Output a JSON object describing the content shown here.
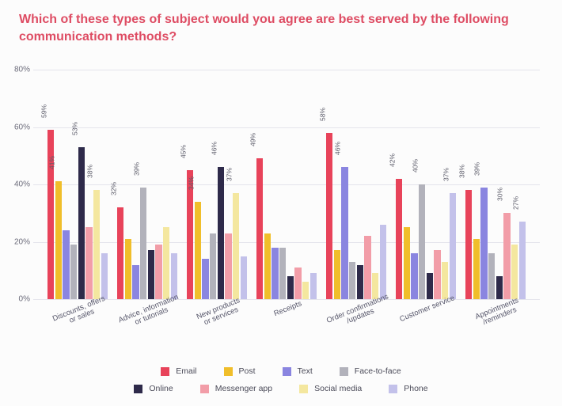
{
  "title": "Which of these types of subject would you agree are best served by the following communication methods?",
  "chart": {
    "type": "bar",
    "background_color": "#fcfcfc",
    "grid_color": "#e4e4ec",
    "text_color": "#56566a",
    "title_color": "#de4c63",
    "title_fontsize": 16,
    "label_fontsize": 10,
    "ylim": [
      0,
      80
    ],
    "ytick_step": 20,
    "yticks": [
      0,
      20,
      40,
      60,
      80
    ],
    "bar_width_ratio": 0.88,
    "label_threshold": 27,
    "categories": [
      {
        "label": "Discounts, offers\nor sales"
      },
      {
        "label": "Advice, information\nor tutorials"
      },
      {
        "label": "New products\nor services"
      },
      {
        "label": "Receipts"
      },
      {
        "label": "Order confirmations\n/updates"
      },
      {
        "label": "Customer service"
      },
      {
        "label": "Appointments\n/reminders"
      }
    ],
    "series": [
      {
        "name": "Email",
        "color": "#e8435a"
      },
      {
        "name": "Post",
        "color": "#f0be2a"
      },
      {
        "name": "Text",
        "color": "#8a85e0"
      },
      {
        "name": "Face-to-face",
        "color": "#b2b2bb"
      },
      {
        "name": "Online",
        "color": "#2e2a4a"
      },
      {
        "name": "Messenger app",
        "color": "#f29da8"
      },
      {
        "name": "Social media",
        "color": "#f4e79f"
      },
      {
        "name": "Phone",
        "color": "#c3c1ea"
      }
    ],
    "values": [
      [
        59,
        41,
        24,
        19,
        53,
        25,
        38,
        16
      ],
      [
        32,
        21,
        12,
        39,
        17,
        19,
        25,
        16
      ],
      [
        45,
        34,
        14,
        23,
        46,
        23,
        37,
        15
      ],
      [
        49,
        23,
        18,
        18,
        8,
        11,
        6,
        9
      ],
      [
        58,
        17,
        46,
        13,
        12,
        22,
        9,
        26
      ],
      [
        42,
        25,
        16,
        40,
        9,
        17,
        13,
        37
      ],
      [
        38,
        21,
        39,
        16,
        8,
        30,
        19,
        27
      ]
    ]
  },
  "legend": {
    "rows": [
      [
        "Email",
        "Post",
        "Text",
        "Face-to-face"
      ],
      [
        "Online",
        "Messenger app",
        "Social media",
        "Phone"
      ]
    ]
  }
}
